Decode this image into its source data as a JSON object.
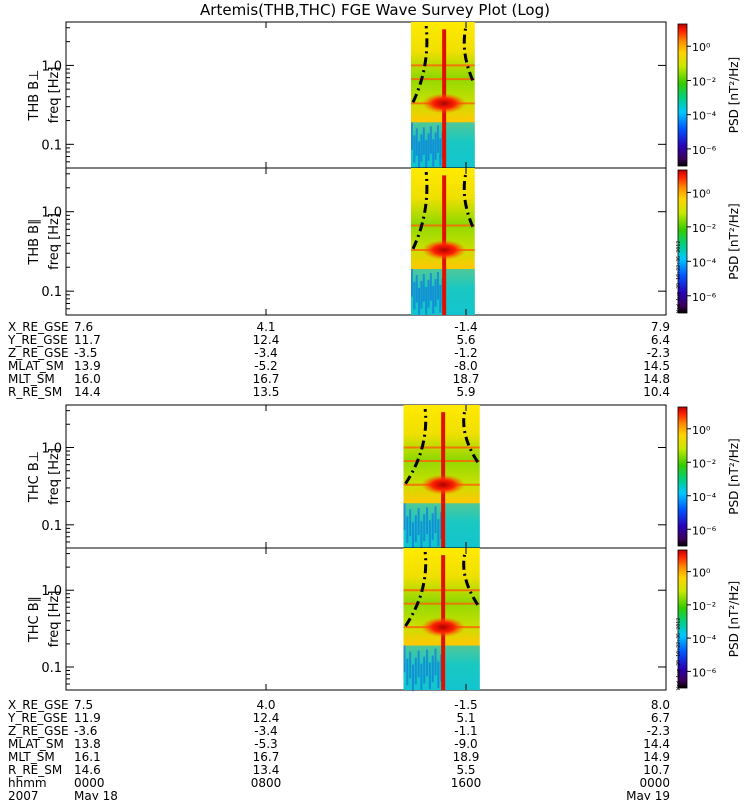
{
  "title": "Artemis(THB,THC) FGE Wave Survey Plot (Log)",
  "colorbar": {
    "label": "PSD [nT²/Hz]",
    "tick_labels": [
      "10⁰",
      "10⁻²",
      "10⁻⁴",
      "10⁻⁶"
    ],
    "log_range": [
      -7,
      1.3
    ]
  },
  "freq_axis": {
    "label": "freq [Hz]",
    "tick_labels": [
      "1.0",
      "0.1"
    ],
    "log_range": [
      -1.3,
      0.55
    ]
  },
  "timestamp_text": "Wed Aug 29 10:22:36 2012",
  "chart_data": [
    {
      "type": "heatmap",
      "name": "THB B⊥",
      "ylabel": "THB B⊥",
      "data_span_hours": [
        13.8,
        16.35
      ],
      "peak_freq_hz": 0.33,
      "ridge_freq_hz": [
        0.33,
        0.67,
        1.0
      ]
    },
    {
      "type": "heatmap",
      "name": "THB B∥",
      "ylabel": "THB B∥",
      "data_span_hours": [
        13.8,
        16.35
      ],
      "peak_freq_hz": 0.33,
      "ridge_freq_hz": [
        0.33,
        0.67
      ]
    },
    {
      "type": "heatmap",
      "name": "THC B⊥",
      "ylabel": "THC B⊥",
      "data_span_hours": [
        13.5,
        16.55
      ],
      "peak_freq_hz": 0.33,
      "ridge_freq_hz": [
        0.33,
        0.67,
        1.0
      ]
    },
    {
      "type": "heatmap",
      "name": "THC B∥",
      "ylabel": "THC B∥",
      "data_span_hours": [
        13.5,
        16.55
      ],
      "peak_freq_hz": 0.33,
      "ridge_freq_hz": [
        0.33,
        0.67,
        1.0
      ]
    }
  ],
  "ephem_top": {
    "rows": [
      {
        "label": "X_RE_GSE",
        "values": [
          "7.6",
          "4.1",
          "-1.4",
          "7.9"
        ]
      },
      {
        "label": "Y_RE_GSE",
        "values": [
          "11.7",
          "12.4",
          "5.6",
          "6.4"
        ]
      },
      {
        "label": "Z_RE_GSE",
        "values": [
          "-3.5",
          "-3.4",
          "-1.2",
          "-2.3"
        ]
      },
      {
        "label": "MLAT_SM",
        "values": [
          "13.9",
          "-5.2",
          "-8.0",
          "14.5"
        ]
      },
      {
        "label": "MLT_SM",
        "values": [
          "16.0",
          "16.7",
          "18.7",
          "14.8"
        ]
      },
      {
        "label": "R_RE_SM",
        "values": [
          "14.4",
          "13.5",
          "5.9",
          "10.4"
        ]
      }
    ]
  },
  "ephem_bottom": {
    "rows": [
      {
        "label": "X_RE_GSE",
        "values": [
          "7.5",
          "4.0",
          "-1.5",
          "8.0"
        ]
      },
      {
        "label": "Y_RE_GSE",
        "values": [
          "11.9",
          "12.4",
          "5.1",
          "6.7"
        ]
      },
      {
        "label": "Z_RE_GSE",
        "values": [
          "-3.6",
          "-3.4",
          "-1.1",
          "-2.3"
        ]
      },
      {
        "label": "MLAT_SM",
        "values": [
          "13.8",
          "-5.3",
          "-9.0",
          "14.4"
        ]
      },
      {
        "label": "MLT_SM",
        "values": [
          "16.1",
          "16.7",
          "18.9",
          "14.9"
        ]
      },
      {
        "label": "R_RE_SM",
        "values": [
          "14.6",
          "13.4",
          "5.5",
          "10.7"
        ]
      },
      {
        "label": "hhmm",
        "values": [
          "0000",
          "0800",
          "1600",
          "0000"
        ]
      }
    ],
    "date_row": {
      "label": "2007",
      "start": "May 18",
      "end": "May 19"
    }
  }
}
